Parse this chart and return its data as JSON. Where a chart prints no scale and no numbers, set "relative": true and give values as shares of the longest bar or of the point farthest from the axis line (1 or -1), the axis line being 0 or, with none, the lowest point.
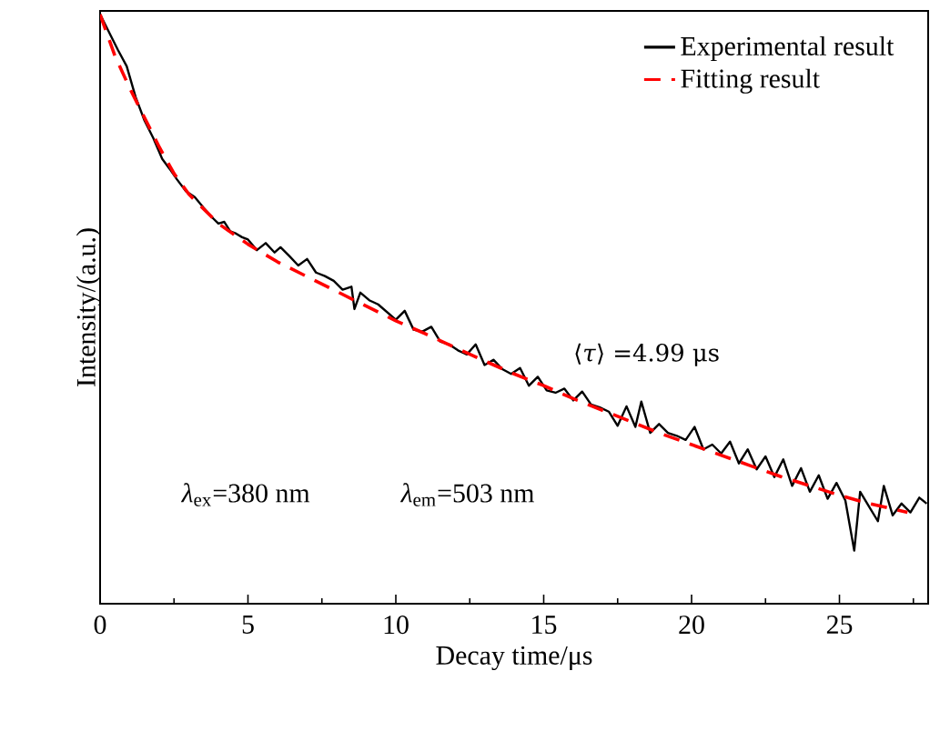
{
  "chart_data": {
    "type": "line",
    "xlabel": "Decay time/μs",
    "ylabel": "Intensity/(a.u.)",
    "relative": true,
    "annotations": [
      "⟨*τ*⟩ =4.99 μs",
      "*λ*$_{ex}$=380 nm",
      "*λ*$_{em}$=503 nm"
    ],
    "xlim": [
      0,
      28
    ],
    "xticks": [
      0,
      {
        "value": 2.5,
        "label": null
      },
      5,
      {
        "value": 7.5,
        "label": null
      },
      10,
      {
        "value": 12.5,
        "label": null
      },
      15,
      {
        "value": 17.5,
        "label": null
      },
      20,
      {
        "value": 22.5,
        "label": null
      },
      25,
      {
        "value": 27.5,
        "label": null
      }
    ],
    "legend": "top right",
    "marker": "none",
    "series": [
      {
        "name": "Experimental result",
        "color": "#000000",
        "line_style": "solid",
        "x": [
          0,
          0.3,
          0.6,
          0.9,
          1.2,
          1.5,
          1.8,
          2.1,
          2.35,
          2.6,
          2.9,
          3.2,
          3.5,
          3.8,
          4.0,
          4.2,
          4.4,
          4.6,
          4.8,
          5.0,
          5.3,
          5.6,
          5.9,
          6.1,
          6.4,
          6.7,
          7.0,
          7.3,
          7.6,
          7.9,
          8.2,
          8.5,
          8.6,
          8.8,
          9.1,
          9.4,
          9.7,
          10.0,
          10.3,
          10.6,
          10.9,
          11.2,
          11.5,
          11.8,
          12.1,
          12.4,
          12.7,
          13.0,
          13.3,
          13.6,
          13.9,
          14.2,
          14.5,
          14.8,
          15.1,
          15.4,
          15.7,
          16.0,
          16.3,
          16.6,
          16.9,
          17.2,
          17.5,
          17.8,
          18.1,
          18.3,
          18.6,
          18.9,
          19.2,
          19.5,
          19.8,
          20.1,
          20.4,
          20.7,
          21.0,
          21.3,
          21.6,
          21.9,
          22.2,
          22.5,
          22.8,
          23.1,
          23.4,
          23.7,
          24.0,
          24.3,
          24.6,
          24.9,
          25.2,
          25.5,
          25.7,
          26.0,
          26.3,
          26.5,
          26.8,
          27.1,
          27.4,
          27.7,
          27.95
        ],
        "values": [
          1.0,
          0.97,
          0.94,
          0.912,
          0.86,
          0.82,
          0.79,
          0.755,
          0.738,
          0.72,
          0.7,
          0.69,
          0.672,
          0.655,
          0.645,
          0.648,
          0.632,
          0.628,
          0.622,
          0.618,
          0.6,
          0.612,
          0.596,
          0.605,
          0.59,
          0.574,
          0.585,
          0.562,
          0.556,
          0.548,
          0.533,
          0.538,
          0.5,
          0.528,
          0.515,
          0.508,
          0.495,
          0.482,
          0.497,
          0.465,
          0.462,
          0.47,
          0.445,
          0.44,
          0.43,
          0.423,
          0.44,
          0.405,
          0.414,
          0.398,
          0.39,
          0.4,
          0.37,
          0.385,
          0.362,
          0.358,
          0.365,
          0.345,
          0.36,
          0.338,
          0.333,
          0.326,
          0.302,
          0.335,
          0.3,
          0.343,
          0.29,
          0.305,
          0.29,
          0.285,
          0.278,
          0.3,
          0.262,
          0.27,
          0.255,
          0.275,
          0.238,
          0.262,
          0.228,
          0.25,
          0.215,
          0.245,
          0.2,
          0.23,
          0.19,
          0.218,
          0.178,
          0.205,
          0.175,
          0.09,
          0.19,
          0.165,
          0.14,
          0.2,
          0.15,
          0.17,
          0.155,
          0.18,
          0.17
        ]
      },
      {
        "name": "Fitting result",
        "color": "#ff0000",
        "line_style": "dashed",
        "x": [
          0,
          0.5,
          1,
          1.5,
          2,
          2.5,
          3,
          4,
          5,
          6,
          7,
          8,
          9,
          10,
          11,
          12,
          13,
          14,
          15,
          16,
          17,
          18,
          19,
          20,
          21,
          22,
          23,
          24,
          25,
          26,
          27.3
        ],
        "values": [
          1.0,
          0.93,
          0.875,
          0.825,
          0.775,
          0.73,
          0.695,
          0.645,
          0.61,
          0.58,
          0.555,
          0.53,
          0.505,
          0.48,
          0.458,
          0.435,
          0.412,
          0.39,
          0.37,
          0.348,
          0.328,
          0.308,
          0.288,
          0.27,
          0.252,
          0.234,
          0.216,
          0.2,
          0.184,
          0.17,
          0.155
        ]
      }
    ]
  }
}
